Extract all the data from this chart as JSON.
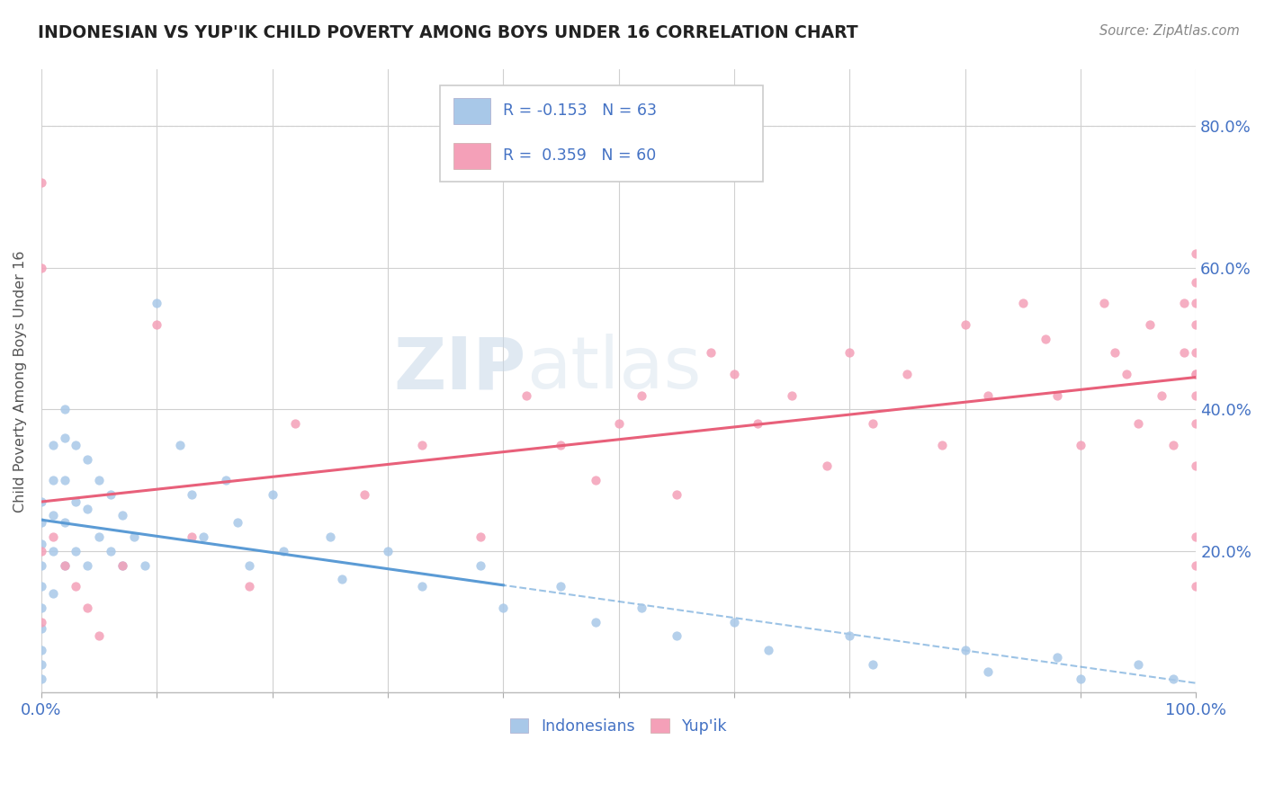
{
  "title": "INDONESIAN VS YUP'IK CHILD POVERTY AMONG BOYS UNDER 16 CORRELATION CHART",
  "source": "Source: ZipAtlas.com",
  "ylabel": "Child Poverty Among Boys Under 16",
  "xlim": [
    0,
    1.0
  ],
  "ylim": [
    0,
    0.88
  ],
  "ytick_positions": [
    0.0,
    0.2,
    0.4,
    0.6,
    0.8
  ],
  "yticklabels": [
    "",
    "20.0%",
    "40.0%",
    "60.0%",
    "80.0%"
  ],
  "color_indonesian": "#a8c8e8",
  "color_yupik": "#f4a0b8",
  "color_line_indonesian": "#5b9bd5",
  "color_line_yupik": "#e8607a",
  "watermark_zip": "ZIP",
  "watermark_atlas": "atlas",
  "background_color": "#ffffff",
  "grid_color": "#d0d0d0",
  "title_color": "#222222",
  "axis_label_color": "#555555",
  "tick_label_color": "#4472c4",
  "indonesian_x": [
    0.0,
    0.0,
    0.0,
    0.0,
    0.0,
    0.0,
    0.0,
    0.0,
    0.0,
    0.0,
    0.01,
    0.01,
    0.01,
    0.01,
    0.01,
    0.02,
    0.02,
    0.02,
    0.02,
    0.02,
    0.03,
    0.03,
    0.03,
    0.04,
    0.04,
    0.04,
    0.05,
    0.05,
    0.06,
    0.06,
    0.07,
    0.07,
    0.08,
    0.09,
    0.1,
    0.12,
    0.13,
    0.14,
    0.16,
    0.17,
    0.18,
    0.2,
    0.21,
    0.25,
    0.26,
    0.3,
    0.33,
    0.38,
    0.4,
    0.45,
    0.48,
    0.52,
    0.55,
    0.6,
    0.63,
    0.7,
    0.72,
    0.8,
    0.82,
    0.88,
    0.9,
    0.95,
    0.98
  ],
  "indonesian_y": [
    0.27,
    0.24,
    0.21,
    0.18,
    0.15,
    0.12,
    0.09,
    0.06,
    0.04,
    0.02,
    0.35,
    0.3,
    0.25,
    0.2,
    0.14,
    0.4,
    0.36,
    0.3,
    0.24,
    0.18,
    0.35,
    0.27,
    0.2,
    0.33,
    0.26,
    0.18,
    0.3,
    0.22,
    0.28,
    0.2,
    0.25,
    0.18,
    0.22,
    0.18,
    0.55,
    0.35,
    0.28,
    0.22,
    0.3,
    0.24,
    0.18,
    0.28,
    0.2,
    0.22,
    0.16,
    0.2,
    0.15,
    0.18,
    0.12,
    0.15,
    0.1,
    0.12,
    0.08,
    0.1,
    0.06,
    0.08,
    0.04,
    0.06,
    0.03,
    0.05,
    0.02,
    0.04,
    0.02
  ],
  "yupik_x": [
    0.0,
    0.0,
    0.0,
    0.0,
    0.01,
    0.02,
    0.03,
    0.04,
    0.05,
    0.07,
    0.1,
    0.13,
    0.18,
    0.22,
    0.28,
    0.33,
    0.38,
    0.42,
    0.45,
    0.48,
    0.5,
    0.52,
    0.55,
    0.58,
    0.6,
    0.62,
    0.65,
    0.68,
    0.7,
    0.72,
    0.75,
    0.78,
    0.8,
    0.82,
    0.85,
    0.87,
    0.88,
    0.9,
    0.92,
    0.93,
    0.94,
    0.95,
    0.96,
    0.97,
    0.98,
    0.99,
    0.99,
    1.0,
    1.0,
    1.0,
    1.0,
    1.0,
    1.0,
    1.0,
    1.0,
    1.0,
    1.0,
    1.0,
    1.0,
    1.0
  ],
  "yupik_y": [
    0.72,
    0.6,
    0.2,
    0.1,
    0.22,
    0.18,
    0.15,
    0.12,
    0.08,
    0.18,
    0.52,
    0.22,
    0.15,
    0.38,
    0.28,
    0.35,
    0.22,
    0.42,
    0.35,
    0.3,
    0.38,
    0.42,
    0.28,
    0.48,
    0.45,
    0.38,
    0.42,
    0.32,
    0.48,
    0.38,
    0.45,
    0.35,
    0.52,
    0.42,
    0.55,
    0.5,
    0.42,
    0.35,
    0.55,
    0.48,
    0.45,
    0.38,
    0.52,
    0.42,
    0.35,
    0.48,
    0.55,
    0.62,
    0.58,
    0.52,
    0.45,
    0.42,
    0.38,
    0.32,
    0.55,
    0.48,
    0.45,
    0.22,
    0.18,
    0.15
  ]
}
